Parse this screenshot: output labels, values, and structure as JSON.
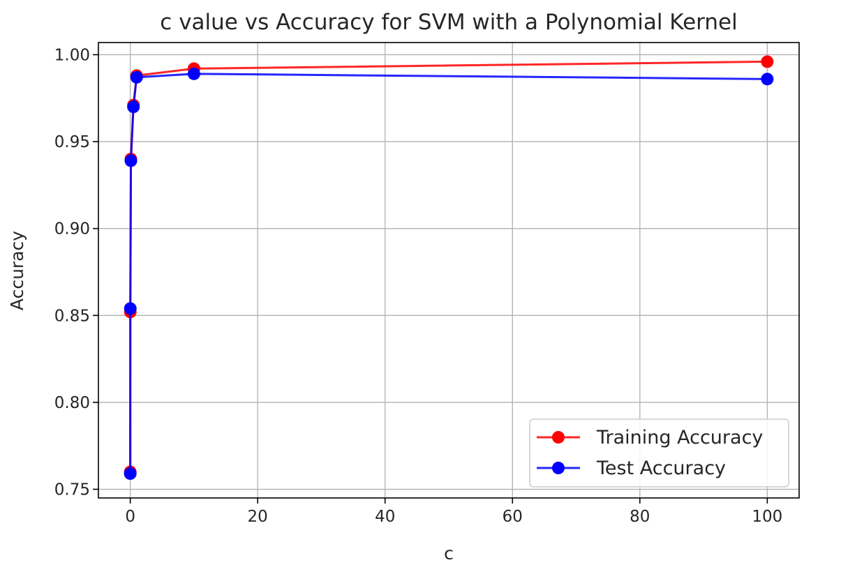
{
  "chart_data": {
    "type": "line",
    "title": "c value vs Accuracy for SVM with a Polynomial Kernel",
    "xlabel": "c",
    "ylabel": "Accuracy",
    "xlim": [
      -5,
      105
    ],
    "ylim": [
      0.745,
      1.007
    ],
    "xticks": [
      0,
      20,
      40,
      60,
      80,
      100
    ],
    "xtick_labels": [
      "0",
      "20",
      "40",
      "60",
      "80",
      "100"
    ],
    "yticks": [
      0.75,
      0.8,
      0.85,
      0.9,
      0.95,
      1.0
    ],
    "ytick_labels": [
      "0.75",
      "0.80",
      "0.85",
      "0.90",
      "0.95",
      "1.00"
    ],
    "grid": true,
    "legend_position": "lower-right",
    "x": [
      0.001,
      0.01,
      0.1,
      0.5,
      1,
      10,
      100
    ],
    "series": [
      {
        "name": "Training Accuracy",
        "color": "#ff0000",
        "marker": "circle",
        "values": [
          0.76,
          0.852,
          0.94,
          0.971,
          0.988,
          0.992,
          0.996
        ]
      },
      {
        "name": "Test Accuracy",
        "color": "#0000ff",
        "marker": "circle",
        "values": [
          0.759,
          0.854,
          0.939,
          0.97,
          0.987,
          0.989,
          0.986
        ]
      }
    ]
  }
}
